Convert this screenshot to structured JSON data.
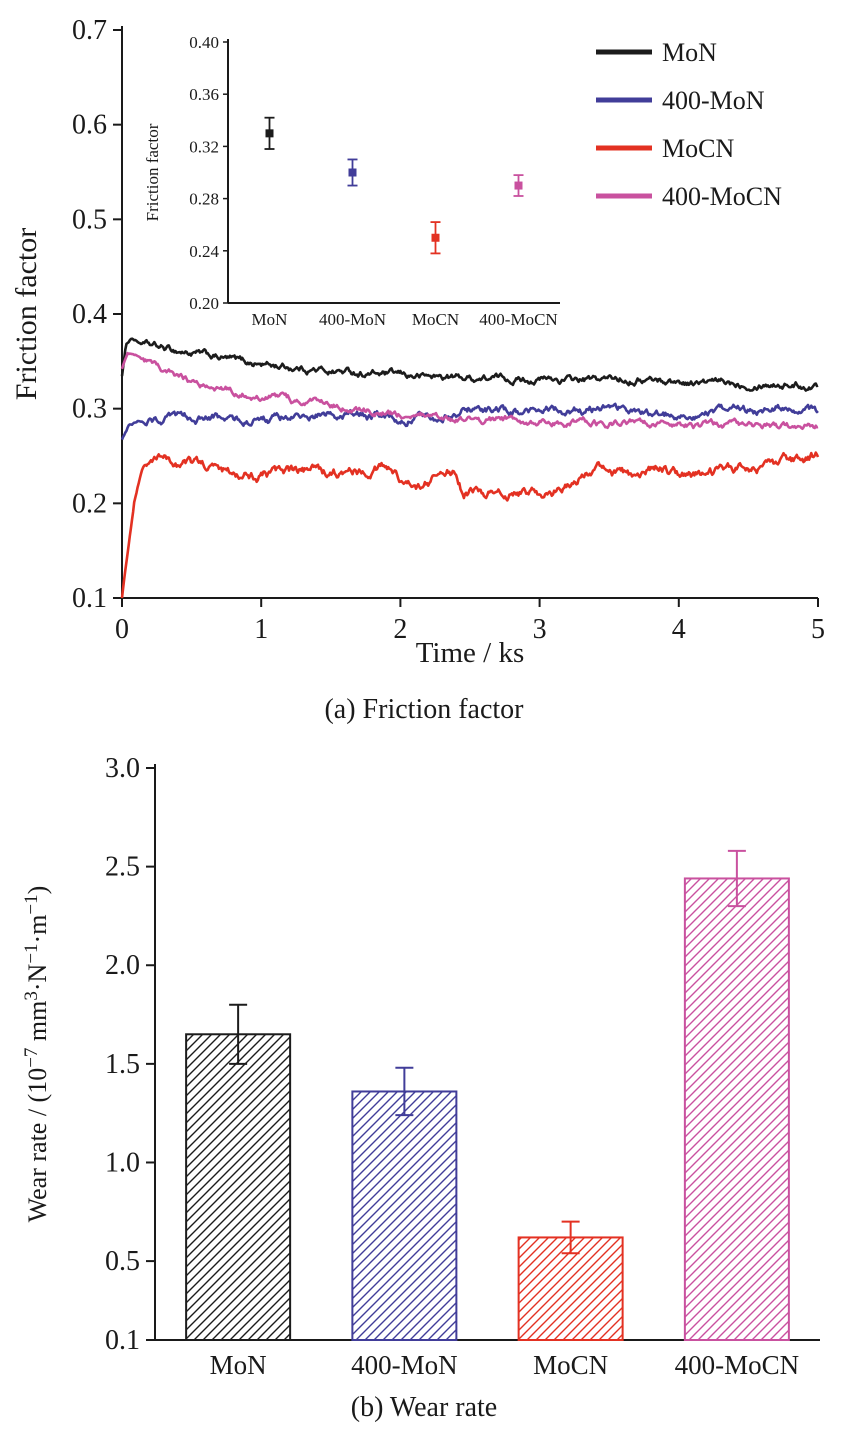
{
  "captions": {
    "a": "(a) Friction factor",
    "b": "(b) Wear rate"
  },
  "chart_data": [
    {
      "type": "line",
      "title": "",
      "xlabel": "Time / ks",
      "ylabel": "Friction factor",
      "xlim": [
        0,
        5
      ],
      "ylim": [
        0.1,
        0.7
      ],
      "xticks": {
        "values": [
          0,
          1,
          2,
          3,
          4,
          5
        ],
        "labels": [
          "0",
          "1",
          "2",
          "3",
          "4",
          "5"
        ]
      },
      "yticks": {
        "values": [
          0.1,
          0.2,
          0.3,
          0.4,
          0.5,
          0.6,
          0.7
        ],
        "labels": [
          "0.1",
          "0.2",
          "0.3",
          "0.4",
          "0.5",
          "0.6",
          "0.7"
        ]
      },
      "grid": false,
      "legend_position": "top-right",
      "series": [
        {
          "name": "MoN",
          "color": "#1c1c1c",
          "jitter": 0.005,
          "points": [
            [
              0,
              0.335
            ],
            [
              0.03,
              0.368
            ],
            [
              0.07,
              0.375
            ],
            [
              0.12,
              0.37
            ],
            [
              0.2,
              0.366
            ],
            [
              0.3,
              0.363
            ],
            [
              0.45,
              0.36
            ],
            [
              0.6,
              0.356
            ],
            [
              0.8,
              0.351
            ],
            [
              1.0,
              0.347
            ],
            [
              1.2,
              0.344
            ],
            [
              1.4,
              0.341
            ],
            [
              1.6,
              0.339
            ],
            [
              1.8,
              0.337
            ],
            [
              2.0,
              0.335
            ],
            [
              2.2,
              0.334
            ],
            [
              2.4,
              0.333
            ],
            [
              2.6,
              0.332
            ],
            [
              2.8,
              0.332
            ],
            [
              3.0,
              0.331
            ],
            [
              3.2,
              0.33
            ],
            [
              3.4,
              0.33
            ],
            [
              3.6,
              0.332
            ],
            [
              3.8,
              0.331
            ],
            [
              4.0,
              0.328
            ],
            [
              4.2,
              0.327
            ],
            [
              4.4,
              0.327
            ],
            [
              4.6,
              0.328
            ],
            [
              4.8,
              0.326
            ],
            [
              5.0,
              0.324
            ]
          ]
        },
        {
          "name": "400-MoN",
          "color": "#413d99",
          "jitter": 0.006,
          "points": [
            [
              0,
              0.268
            ],
            [
              0.05,
              0.284
            ],
            [
              0.15,
              0.288
            ],
            [
              0.3,
              0.289
            ],
            [
              0.5,
              0.29
            ],
            [
              0.7,
              0.289
            ],
            [
              0.9,
              0.288
            ],
            [
              1.1,
              0.289
            ],
            [
              1.3,
              0.291
            ],
            [
              1.5,
              0.294
            ],
            [
              1.7,
              0.292
            ],
            [
              1.9,
              0.29
            ],
            [
              2.1,
              0.291
            ],
            [
              2.3,
              0.293
            ],
            [
              2.5,
              0.3
            ],
            [
              2.7,
              0.298
            ],
            [
              2.9,
              0.294
            ],
            [
              3.1,
              0.299
            ],
            [
              3.3,
              0.297
            ],
            [
              3.5,
              0.303
            ],
            [
              3.7,
              0.296
            ],
            [
              3.9,
              0.294
            ],
            [
              4.1,
              0.296
            ],
            [
              4.3,
              0.294
            ],
            [
              4.5,
              0.297
            ],
            [
              4.7,
              0.301
            ],
            [
              4.9,
              0.299
            ],
            [
              5.0,
              0.297
            ]
          ]
        },
        {
          "name": "MoCN",
          "color": "#e33122",
          "jitter": 0.007,
          "points": [
            [
              0,
              0.1
            ],
            [
              0.02,
              0.125
            ],
            [
              0.05,
              0.16
            ],
            [
              0.09,
              0.205
            ],
            [
              0.14,
              0.235
            ],
            [
              0.2,
              0.245
            ],
            [
              0.3,
              0.246
            ],
            [
              0.45,
              0.242
            ],
            [
              0.6,
              0.238
            ],
            [
              0.8,
              0.234
            ],
            [
              1.0,
              0.23
            ],
            [
              1.2,
              0.232
            ],
            [
              1.4,
              0.234
            ],
            [
              1.6,
              0.23
            ],
            [
              1.8,
              0.236
            ],
            [
              1.9,
              0.24
            ],
            [
              2.0,
              0.225
            ],
            [
              2.1,
              0.216
            ],
            [
              2.2,
              0.22
            ],
            [
              2.3,
              0.232
            ],
            [
              2.38,
              0.234
            ],
            [
              2.45,
              0.21
            ],
            [
              2.6,
              0.212
            ],
            [
              2.75,
              0.208
            ],
            [
              2.9,
              0.212
            ],
            [
              3.0,
              0.209
            ],
            [
              3.1,
              0.212
            ],
            [
              3.2,
              0.216
            ],
            [
              3.3,
              0.228
            ],
            [
              3.4,
              0.24
            ],
            [
              3.5,
              0.233
            ],
            [
              3.6,
              0.23
            ],
            [
              3.7,
              0.228
            ],
            [
              3.85,
              0.237
            ],
            [
              4.0,
              0.231
            ],
            [
              4.2,
              0.232
            ],
            [
              4.4,
              0.234
            ],
            [
              4.6,
              0.237
            ],
            [
              4.8,
              0.244
            ],
            [
              5.0,
              0.249
            ]
          ]
        },
        {
          "name": "400-MoCN",
          "color": "#c9519f",
          "jitter": 0.005,
          "points": [
            [
              0,
              0.342
            ],
            [
              0.04,
              0.358
            ],
            [
              0.1,
              0.356
            ],
            [
              0.2,
              0.347
            ],
            [
              0.3,
              0.338
            ],
            [
              0.4,
              0.332
            ],
            [
              0.5,
              0.328
            ],
            [
              0.65,
              0.323
            ],
            [
              0.8,
              0.32
            ],
            [
              1.0,
              0.314
            ],
            [
              1.2,
              0.309
            ],
            [
              1.4,
              0.306
            ],
            [
              1.6,
              0.302
            ],
            [
              1.8,
              0.297
            ],
            [
              2.0,
              0.293
            ],
            [
              2.2,
              0.291
            ],
            [
              2.4,
              0.289
            ],
            [
              2.6,
              0.288
            ],
            [
              2.8,
              0.288
            ],
            [
              3.0,
              0.287
            ],
            [
              3.2,
              0.286
            ],
            [
              3.4,
              0.285
            ],
            [
              3.6,
              0.285
            ],
            [
              3.8,
              0.284
            ],
            [
              4.0,
              0.283
            ],
            [
              4.2,
              0.283
            ],
            [
              4.4,
              0.282
            ],
            [
              4.6,
              0.282
            ],
            [
              4.8,
              0.281
            ],
            [
              5.0,
              0.28
            ]
          ]
        }
      ],
      "inset": {
        "type": "scatter",
        "ylabel": "Friction factor",
        "ylim": [
          0.2,
          0.4
        ],
        "yticks": {
          "values": [
            0.2,
            0.24,
            0.28,
            0.32,
            0.36,
            0.4
          ],
          "labels": [
            "0.20",
            "0.24",
            "0.28",
            "0.32",
            "0.36",
            "0.40"
          ]
        },
        "categories": [
          "MoN",
          "400-MoN",
          "MoCN",
          "400-MoCN"
        ],
        "values": [
          0.33,
          0.3,
          0.25,
          0.29
        ],
        "errors": [
          0.012,
          0.01,
          0.012,
          0.008
        ],
        "colors": [
          "#1c1c1c",
          "#413d99",
          "#e33122",
          "#c9519f"
        ]
      }
    },
    {
      "type": "bar",
      "title": "",
      "xlabel": "",
      "ylabel": "Wear rate / (10⁻⁷ mm³·N⁻¹·m⁻¹)",
      "ylabel_parts": [
        {
          "t": "Wear rate / (10"
        },
        {
          "t": "−7",
          "sup": true
        },
        {
          "t": " mm"
        },
        {
          "t": "3",
          "sup": true
        },
        {
          "t": "·N"
        },
        {
          "t": "−1",
          "sup": true
        },
        {
          "t": "·m"
        },
        {
          "t": "−1",
          "sup": true
        },
        {
          "t": ")"
        }
      ],
      "ylim": [
        0.1,
        3.0
      ],
      "yticks": {
        "values": [
          0.1,
          0.5,
          1.0,
          1.5,
          2.0,
          2.5,
          3.0
        ],
        "labels": [
          "0.1",
          "0.5",
          "1.0",
          "1.5",
          "2.0",
          "2.5",
          "3.0"
        ]
      },
      "grid": false,
      "hatch": "diagonal",
      "categories": [
        "MoN",
        "400-MoN",
        "MoCN",
        "400-MoCN"
      ],
      "values": [
        1.65,
        1.36,
        0.62,
        2.44
      ],
      "errors": [
        0.15,
        0.12,
        0.08,
        0.14
      ],
      "colors": [
        "#1c1c1c",
        "#413d99",
        "#e33122",
        "#c9519f"
      ]
    }
  ]
}
